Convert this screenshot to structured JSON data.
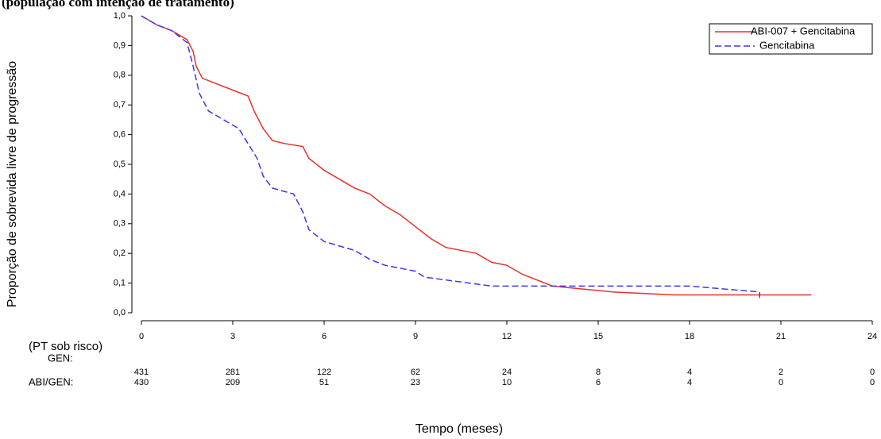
{
  "chart_data": {
    "type": "line",
    "title": "(população com intenção de tratamento)",
    "y_label": "Proporção de sobrevida livre de progressão",
    "x_label": "Tempo (meses)",
    "xlim": [
      0,
      24
    ],
    "xticks": [
      0,
      3,
      6,
      9,
      12,
      15,
      18,
      21,
      24
    ],
    "ylim": [
      0,
      1.0
    ],
    "yticks": [
      {
        "value": 0,
        "label": "0,0"
      },
      {
        "value": 0.1,
        "label": "0,1"
      },
      {
        "value": 0.2,
        "label": "0,2"
      },
      {
        "value": 0.3,
        "label": "0,3"
      },
      {
        "value": 0.4,
        "label": "0,4"
      },
      {
        "value": 0.5,
        "label": "0,5"
      },
      {
        "value": 0.6,
        "label": "0,6"
      },
      {
        "value": 0.7,
        "label": "0,7"
      },
      {
        "value": 0.8,
        "label": "0,8"
      },
      {
        "value": 0.9,
        "label": "0,9"
      },
      {
        "value": 1.0,
        "label": "1,0"
      }
    ],
    "legend": "top-right",
    "series": [
      {
        "name": "ABI-007 + Gencitabina",
        "color": "#e8312a",
        "dash": false,
        "x": [
          0,
          0.5,
          1,
          1.5,
          1.7,
          1.8,
          2,
          2.5,
          3,
          3.5,
          3.7,
          4,
          4.3,
          4.7,
          5.3,
          5.5,
          6,
          6.5,
          7,
          7.5,
          8,
          8.5,
          9,
          9.5,
          10,
          11,
          11.5,
          12,
          12.5,
          13,
          13.5,
          14.5,
          15.5,
          17.5,
          22
        ],
        "values": [
          1.0,
          0.97,
          0.95,
          0.92,
          0.88,
          0.83,
          0.79,
          0.77,
          0.75,
          0.73,
          0.68,
          0.62,
          0.58,
          0.57,
          0.56,
          0.52,
          0.48,
          0.45,
          0.42,
          0.4,
          0.36,
          0.33,
          0.29,
          0.25,
          0.22,
          0.2,
          0.17,
          0.16,
          0.13,
          0.11,
          0.09,
          0.08,
          0.07,
          0.06,
          0.06
        ]
      },
      {
        "name": "Gencitabina",
        "color": "#3a3ae8",
        "dash": true,
        "x": [
          0,
          0.5,
          1,
          1.5,
          1.7,
          1.9,
          2.2,
          2.7,
          3.2,
          3.5,
          3.8,
          4,
          4.3,
          5,
          5.3,
          5.5,
          6,
          7,
          7.5,
          8,
          9,
          9.3,
          11.5,
          13,
          18,
          20.3,
          20.3
        ],
        "values": [
          1.0,
          0.97,
          0.95,
          0.91,
          0.83,
          0.74,
          0.68,
          0.65,
          0.62,
          0.57,
          0.52,
          0.46,
          0.42,
          0.4,
          0.34,
          0.28,
          0.24,
          0.21,
          0.18,
          0.16,
          0.14,
          0.12,
          0.09,
          0.09,
          0.09,
          0.07,
          0.05
        ]
      }
    ],
    "risk_table": {
      "header": "(PT sob risco)",
      "rows": [
        {
          "label": "GEN:",
          "counts": [
            431,
            281,
            122,
            62,
            24,
            8,
            4,
            2,
            0
          ]
        },
        {
          "label": "ABI/GEN:",
          "counts": [
            430,
            209,
            51,
            23,
            10,
            6,
            4,
            0,
            0
          ]
        }
      ]
    }
  }
}
